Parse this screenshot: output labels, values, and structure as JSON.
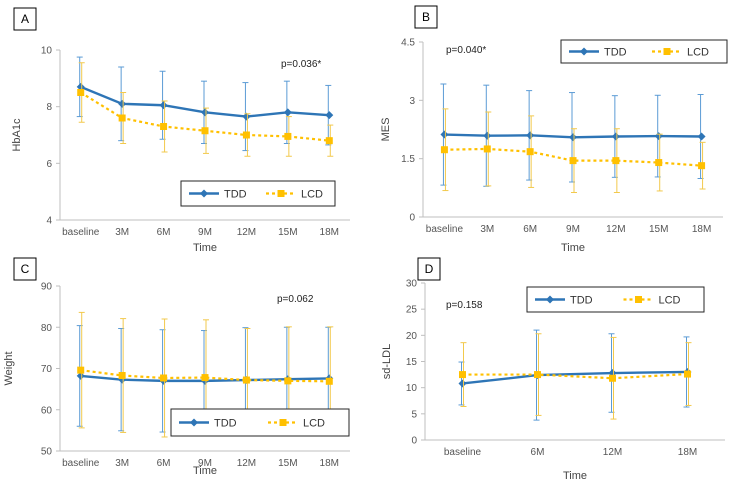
{
  "colors": {
    "tdd": "#2E75B6",
    "lcd": "#FFC000",
    "tdd_err": "#5B9BD5",
    "lcd_err": "#F2C94C",
    "axis": "#BFBFBF"
  },
  "chart_data": [
    {
      "panel": "A",
      "type": "line",
      "title": "",
      "xlabel": "Time",
      "ylabel": "HbA1c",
      "categories": [
        "baseline",
        "3M",
        "6M",
        "9M",
        "12M",
        "15M",
        "18M"
      ],
      "ylim": [
        4,
        10
      ],
      "yticks": [
        "4",
        "6",
        "8",
        "10"
      ],
      "annotation": "p=0.036*",
      "legend_position": "bottom-right",
      "legend_labels": [
        "TDD",
        "LCD"
      ],
      "series": [
        {
          "name": "TDD",
          "values": [
            8.7,
            8.1,
            8.05,
            7.8,
            7.65,
            7.8,
            7.7
          ],
          "err": [
            1.05,
            1.3,
            1.2,
            1.1,
            1.2,
            1.1,
            1.05
          ]
        },
        {
          "name": "LCD",
          "values": [
            8.5,
            7.6,
            7.3,
            7.15,
            7.0,
            6.95,
            6.8
          ],
          "err": [
            1.05,
            0.9,
            0.9,
            0.8,
            0.75,
            0.7,
            0.55
          ]
        }
      ]
    },
    {
      "panel": "B",
      "type": "line",
      "title": "",
      "xlabel": "Time",
      "ylabel": "MES",
      "categories": [
        "baseline",
        "3M",
        "6M",
        "9M",
        "12M",
        "15M",
        "18M"
      ],
      "ylim": [
        0,
        4.5
      ],
      "yticks": [
        "0",
        "1.5",
        "3",
        "4.5"
      ],
      "annotation": "p=0.040*",
      "legend_position": "top-right",
      "legend_labels": [
        "TDD",
        "LCD"
      ],
      "series": [
        {
          "name": "TDD",
          "values": [
            2.12,
            2.09,
            2.1,
            2.05,
            2.07,
            2.08,
            2.07
          ],
          "err": [
            1.3,
            1.3,
            1.15,
            1.15,
            1.05,
            1.05,
            1.08
          ]
        },
        {
          "name": "LCD",
          "values": [
            1.73,
            1.75,
            1.68,
            1.45,
            1.45,
            1.4,
            1.32
          ],
          "err": [
            1.05,
            0.95,
            0.92,
            0.82,
            0.82,
            0.73,
            0.6
          ]
        }
      ]
    },
    {
      "panel": "C",
      "type": "line",
      "title": "",
      "xlabel": "Time",
      "ylabel": "Weight",
      "categories": [
        "baseline",
        "3M",
        "6M",
        "9M",
        "12M",
        "15M",
        "18M"
      ],
      "ylim": [
        50,
        90
      ],
      "yticks": [
        "50",
        "60",
        "70",
        "80",
        "90"
      ],
      "annotation": "p=0.062",
      "legend_position": "bottom-right",
      "legend_labels": [
        "TDD",
        "LCD"
      ],
      "series": [
        {
          "name": "TDD",
          "values": [
            68.2,
            67.3,
            67.0,
            67.0,
            67.2,
            67.4,
            67.6
          ],
          "err": [
            12.2,
            12.4,
            12.4,
            12.2,
            12.7,
            12.6,
            12.4
          ]
        },
        {
          "name": "LCD",
          "values": [
            69.6,
            68.3,
            67.7,
            67.8,
            67.2,
            67.0,
            66.9
          ],
          "err": [
            14.0,
            13.8,
            14.3,
            14.0,
            12.5,
            13.1,
            13.2
          ]
        }
      ]
    },
    {
      "panel": "D",
      "type": "line",
      "title": "",
      "xlabel": "Time",
      "ylabel": "sd-LDL",
      "categories": [
        "baseline",
        "6M",
        "12M",
        "18M"
      ],
      "ylim": [
        0,
        30
      ],
      "yticks": [
        "0",
        "5",
        "10",
        "15",
        "20",
        "25",
        "30"
      ],
      "annotation": "p=0.158",
      "legend_position": "top-right",
      "legend_labels": [
        "TDD",
        "LCD"
      ],
      "series": [
        {
          "name": "TDD",
          "values": [
            10.8,
            12.4,
            12.8,
            13.0
          ],
          "err": [
            4.1,
            8.6,
            7.5,
            6.7
          ]
        },
        {
          "name": "LCD",
          "values": [
            12.5,
            12.5,
            11.8,
            12.6
          ],
          "err": [
            6.1,
            7.8,
            7.8,
            6.0
          ]
        }
      ]
    }
  ]
}
